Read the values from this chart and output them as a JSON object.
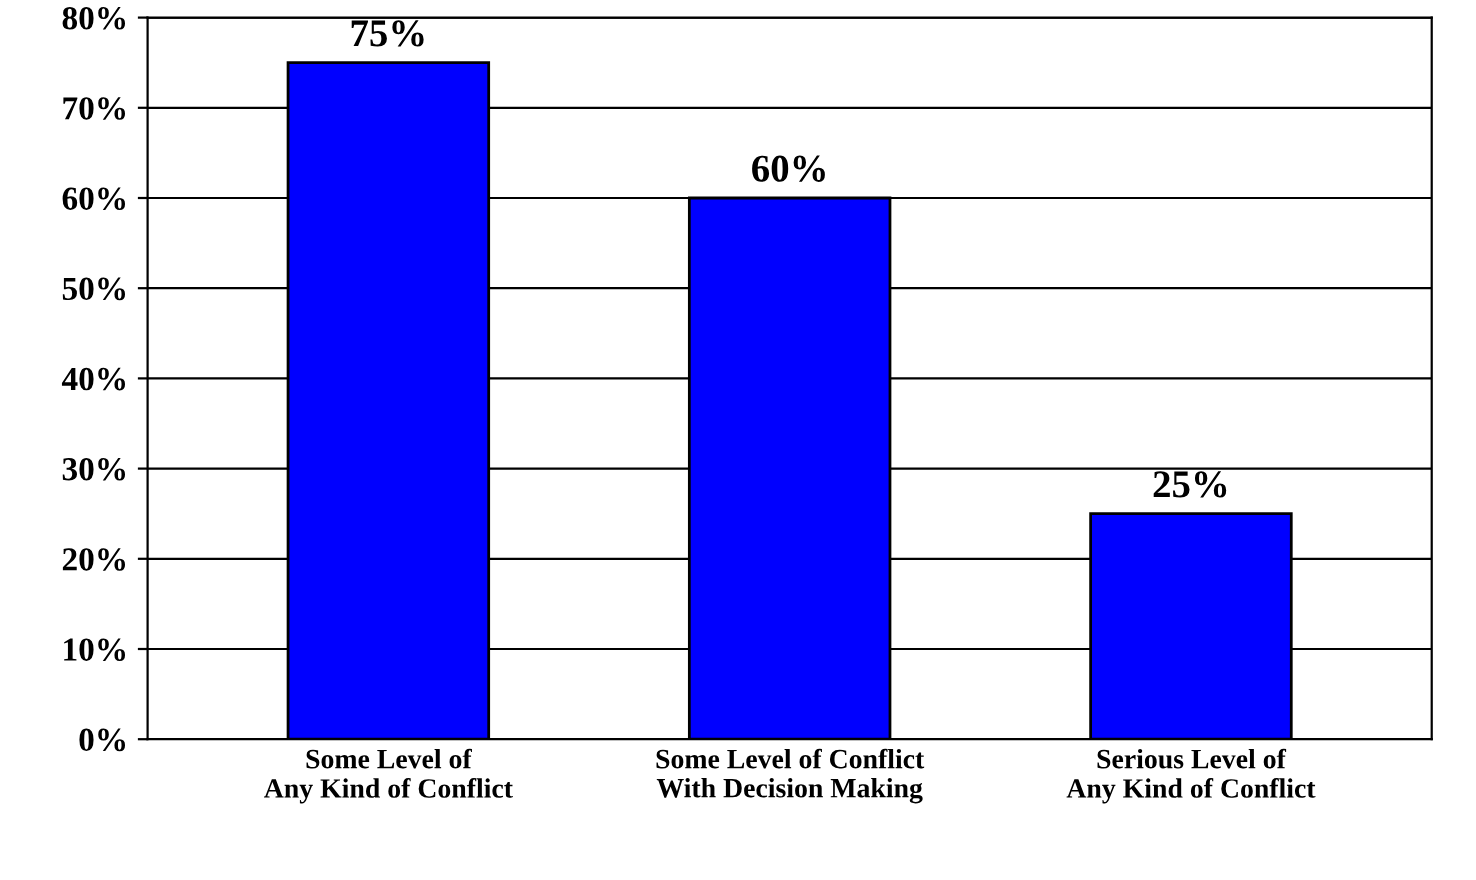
{
  "chart_data": {
    "type": "bar",
    "categories": [
      "Some Level of\nAny Kind of Conflict",
      "Some Level of Conflict\nWith Decision Making",
      "Serious Level of\nAny Kind of Conflict"
    ],
    "values": [
      75,
      60,
      25
    ],
    "value_labels": [
      "75%",
      "60%",
      "25%"
    ],
    "color": "#0000ff",
    "ylim": [
      0,
      80
    ],
    "yticks": [
      {
        "value": 0,
        "label": "0%"
      },
      {
        "value": 10,
        "label": "10%"
      },
      {
        "value": 20,
        "label": "20%"
      },
      {
        "value": 30,
        "label": "30%"
      },
      {
        "value": 40,
        "label": "40%"
      },
      {
        "value": 50,
        "label": "50%"
      },
      {
        "value": 60,
        "label": "60%"
      },
      {
        "value": 70,
        "label": "70%"
      },
      {
        "value": 80,
        "label": "80%"
      }
    ],
    "grid": "y"
  }
}
